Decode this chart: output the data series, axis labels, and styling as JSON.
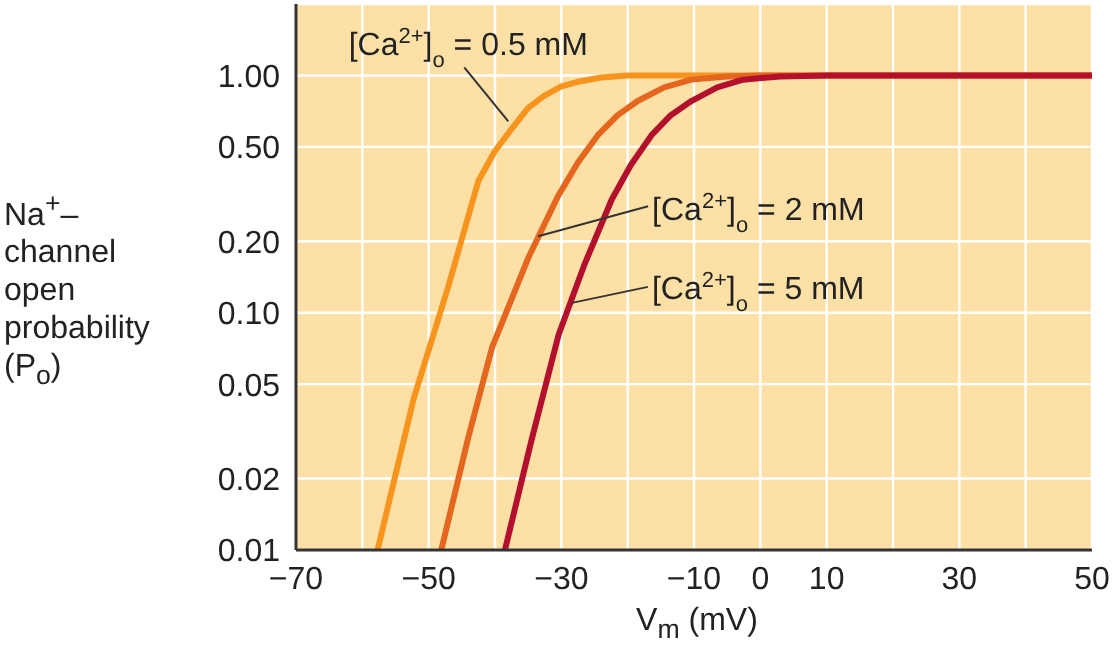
{
  "chart_data": {
    "type": "line",
    "xlabel": "V$_{m}$ (mV)",
    "ylabel": "Na$^{+}$– channel open probability (P$_{o}$)",
    "log": "y",
    "grid": true,
    "marker": "none",
    "line_style": "solid",
    "xlim": [
      -70,
      50
    ],
    "xticks": [
      -70,
      {
        "value": -60,
        "label": null
      },
      -50,
      {
        "value": -40,
        "label": null
      },
      -30,
      {
        "value": -20,
        "label": null
      },
      -10,
      0,
      10,
      {
        "value": 20,
        "label": null
      },
      30,
      {
        "value": 40,
        "label": null
      },
      50
    ],
    "ylim": [
      0.01,
      2
    ],
    "yticks": [
      {
        "value": 0.01,
        "label": "0.01"
      },
      {
        "value": 0.02,
        "label": "0.02"
      },
      {
        "value": 0.05,
        "label": "0.05"
      },
      {
        "value": 0.1,
        "label": "0.10"
      },
      {
        "value": 0.2,
        "label": "0.20"
      },
      {
        "value": 0.5,
        "label": "0.50"
      },
      {
        "value": 1,
        "label": "1.00"
      }
    ],
    "series": [
      {
        "color": "#f7941d",
        "x": [
          -57.7,
          -52.3,
          -47,
          -42.5,
          -40,
          -37.4,
          -35,
          -32.6,
          -30,
          -27.5,
          -24,
          -20,
          50
        ],
        "values": [
          0.01,
          0.043,
          0.13,
          0.36,
          0.48,
          0.6,
          0.73,
          0.82,
          0.9,
          0.94,
          0.98,
          1,
          1
        ]
      },
      {
        "color": "#e4661f",
        "x": [
          -48.1,
          -44,
          -40.4,
          -35,
          -30.5,
          -27.5,
          -24.5,
          -21.5,
          -18.5,
          -14.5,
          -10.4,
          -5,
          0,
          50
        ],
        "values": [
          0.01,
          0.03,
          0.072,
          0.17,
          0.31,
          0.43,
          0.56,
          0.68,
          0.78,
          0.89,
          0.96,
          0.99,
          1,
          1
        ]
      },
      {
        "color": "#b3102e",
        "x": [
          -38.5,
          -34.5,
          -30.4,
          -26.5,
          -22.4,
          -19.5,
          -16.4,
          -13.5,
          -10.4,
          -6.5,
          -2.6,
          3,
          10,
          50
        ],
        "values": [
          0.01,
          0.029,
          0.081,
          0.16,
          0.3,
          0.42,
          0.56,
          0.68,
          0.78,
          0.89,
          0.96,
          0.99,
          1,
          1
        ]
      }
    ],
    "annotations": [
      {
        "text": "[Ca$^{2+}$]$_{o}$ = 0.5 mM",
        "x": -38,
        "y": 0.64
      },
      {
        "text": "[Ca$^{2+}$]$_{o}$ = 2 mM",
        "x": -33.5,
        "y": 0.21
      },
      {
        "text": "[Ca$^{2+}$]$_{o}$ = 5 mM",
        "x": -28.4,
        "y": 0.11
      }
    ]
  }
}
